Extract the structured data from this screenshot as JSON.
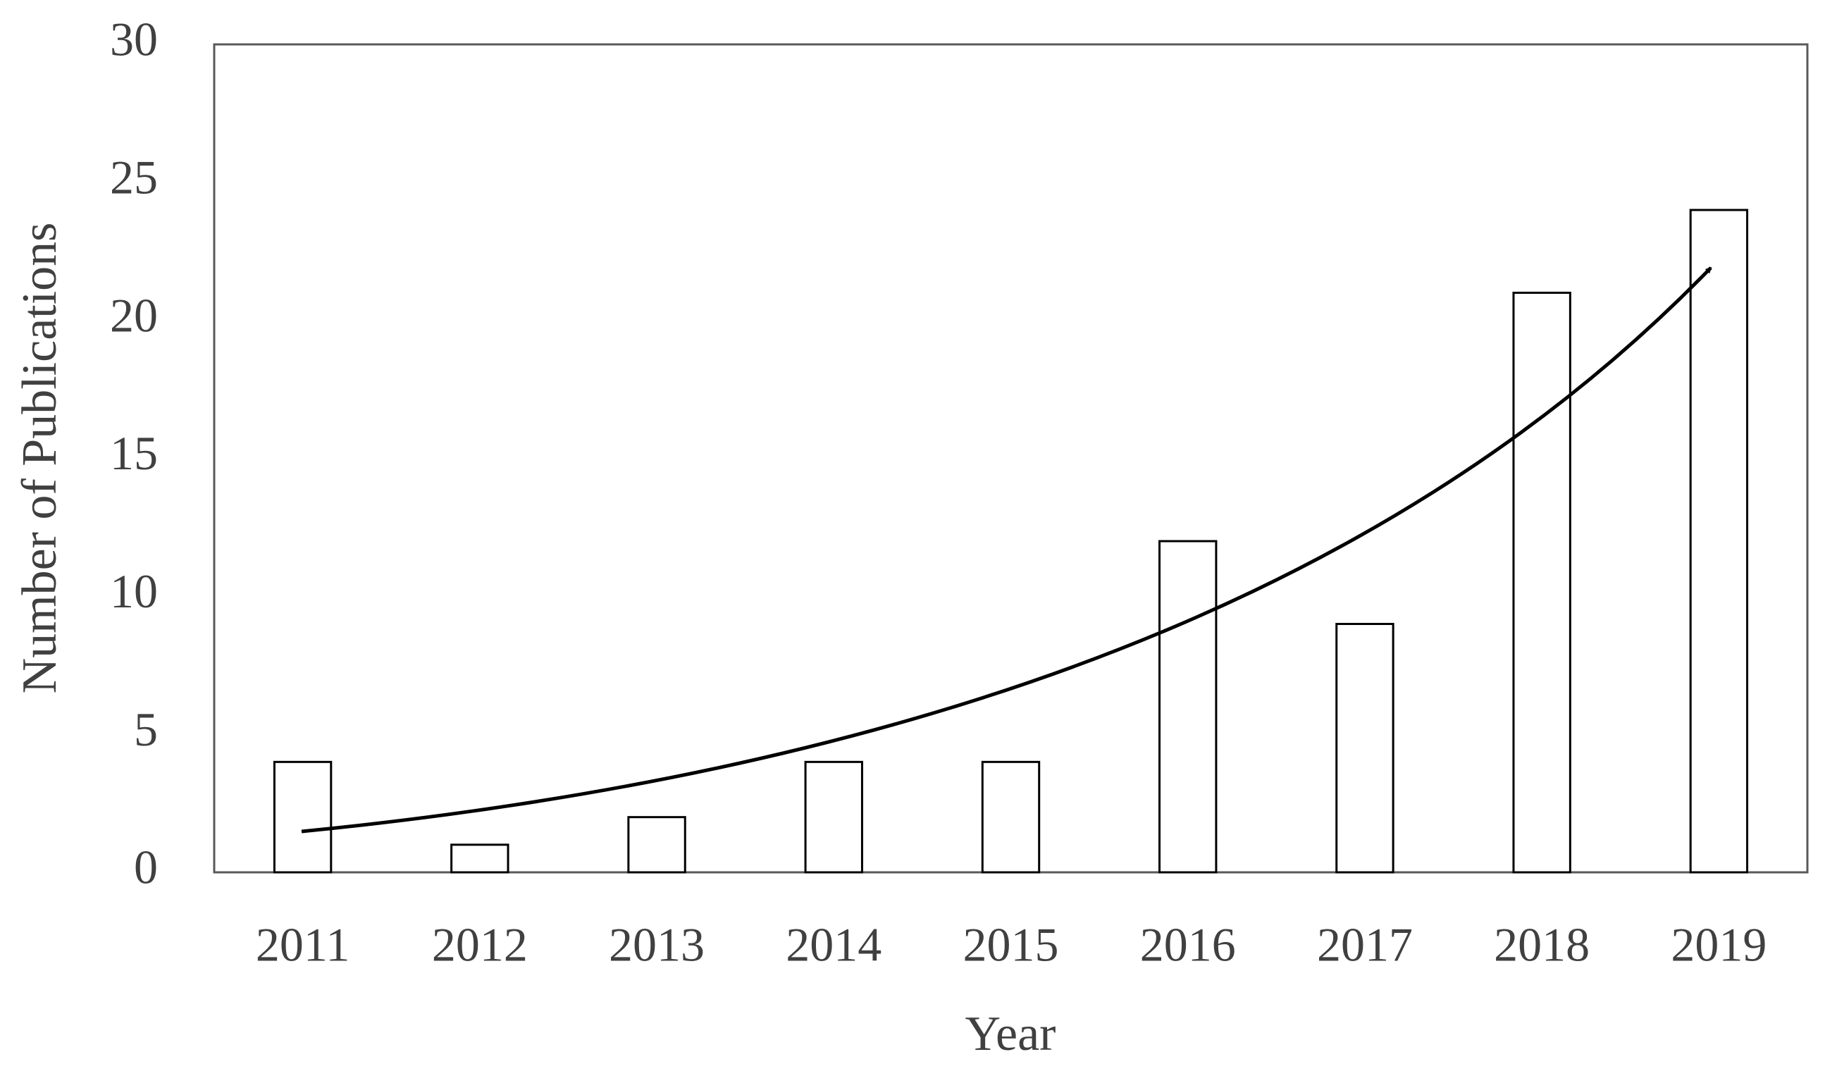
{
  "chart_data": {
    "type": "bar",
    "categories": [
      "2011",
      "2012",
      "2013",
      "2014",
      "2015",
      "2016",
      "2017",
      "2018",
      "2019"
    ],
    "values": [
      4,
      1,
      2,
      4,
      4,
      12,
      9,
      21,
      24
    ],
    "color": "#ffffff",
    "x_label": "Year",
    "y_label": "Number of Publications",
    "ylim": [
      0,
      30
    ],
    "yticks": [
      0,
      5,
      10,
      15,
      20,
      25,
      30
    ],
    "grid": false
  }
}
